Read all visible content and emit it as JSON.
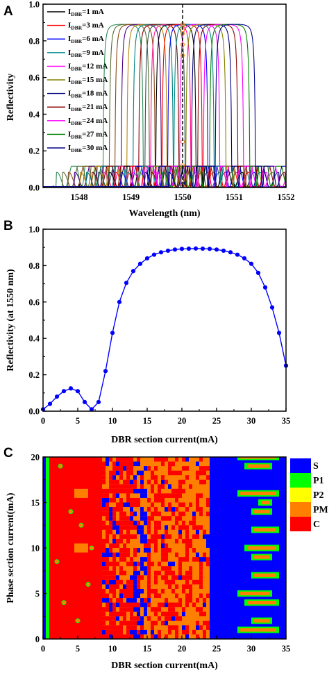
{
  "chart_data": [
    {
      "panel_label": "A",
      "type": "line",
      "xlabel": "Wavelength (nm)",
      "ylabel": "Reflectivity",
      "xlim": [
        1547.3,
        1552
      ],
      "ylim": [
        0,
        1.0
      ],
      "xticks": [
        1548,
        1549,
        1550,
        1551,
        1552
      ],
      "yticks": [
        0.0,
        0.2,
        0.4,
        0.6,
        0.8,
        1.0
      ],
      "xtick_labels": [
        "1548",
        "1549",
        "1550",
        "1551",
        "1552"
      ],
      "ytick_labels": [
        "0.0",
        "0.2",
        "0.4",
        "0.6",
        "0.8",
        "1.0"
      ],
      "legend_position": "top-left",
      "marker_line": {
        "x": 1550,
        "style": "dashed",
        "color": "#000000"
      },
      "series_model": "Bragg grating reflection spectrum (peak ~0.89, side lobes ~0.12); peak shifts ~+0.115 nm per 3 mA",
      "series": [
        {
          "name_main": "I",
          "name_sub": "DBR",
          "name_rest": "=1 mA",
          "center": 1549.87,
          "color": "#000000",
          "marker_at_1550": 0.89
        },
        {
          "name_main": "I",
          "name_sub": "DBR",
          "name_rest": "=3 mA",
          "center": 1549.99,
          "color": "#ff0000",
          "marker_at_1550": 0.89
        },
        {
          "name_main": "I",
          "name_sub": "DBR",
          "name_rest": "=6 mA",
          "center": 1550.1,
          "color": "#0000ff",
          "marker_at_1550": 0.88
        },
        {
          "name_main": "I",
          "name_sub": "DBR",
          "name_rest": "=9 mA",
          "center": 1550.22,
          "color": "#008b8b",
          "marker_at_1550": 0.86
        },
        {
          "name_main": "I",
          "name_sub": "DBR",
          "name_rest": "=12 mA",
          "center": 1550.33,
          "color": "#ff00ff",
          "marker_at_1550": 0.84
        },
        {
          "name_main": "I",
          "name_sub": "DBR",
          "name_rest": "=15 mA",
          "center": 1550.45,
          "color": "#808000",
          "marker_at_1550": 0.78
        },
        {
          "name_main": "I",
          "name_sub": "DBR",
          "name_rest": "=18 mA",
          "center": 1550.56,
          "color": "#000080",
          "marker_at_1550": 0.72
        },
        {
          "name_main": "I",
          "name_sub": "DBR",
          "name_rest": "=21 mA",
          "center": 1550.68,
          "color": "#8b0000",
          "marker_at_1550": 0.25
        },
        {
          "name_main": "I",
          "name_sub": "DBR",
          "name_rest": "=24 mA",
          "center": 1550.79,
          "color": "#ff00ff",
          "marker_at_1550": 0.12
        },
        {
          "name_main": "I",
          "name_sub": "DBR",
          "name_rest": "=27 mA",
          "center": 1550.91,
          "color": "#008000",
          "marker_at_1550": 0.04
        },
        {
          "name_main": "I",
          "name_sub": "DBR",
          "name_rest": "=30 mA",
          "center": 1551.02,
          "color": "#00008b",
          "marker_at_1550": 0.01
        }
      ],
      "extra_spectra_centers": [
        1548.85,
        1548.97,
        1549.08,
        1549.2,
        1549.31,
        1549.43,
        1549.54,
        1549.66,
        1549.77
      ]
    },
    {
      "panel_label": "B",
      "type": "line",
      "xlabel": "DBR section current(mA)",
      "ylabel": "Reflectivity (at 1550 nm)",
      "xlim": [
        0,
        35
      ],
      "ylim": [
        0,
        1.0
      ],
      "xticks": [
        0,
        5,
        10,
        15,
        20,
        25,
        30,
        35
      ],
      "yticks": [
        0.0,
        0.2,
        0.4,
        0.6,
        0.8,
        1.0
      ],
      "xtick_labels": [
        "0",
        "5",
        "10",
        "15",
        "20",
        "25",
        "30",
        "35"
      ],
      "ytick_labels": [
        "0.0",
        "0.2",
        "0.4",
        "0.6",
        "0.8",
        "1.0"
      ],
      "color": "#0000ff",
      "x": [
        0,
        1,
        2,
        3,
        4,
        5,
        6,
        7,
        8,
        9,
        10,
        11,
        12,
        13,
        14,
        15,
        16,
        17,
        18,
        19,
        20,
        21,
        22,
        23,
        24,
        25,
        26,
        27,
        28,
        29,
        30,
        31,
        32,
        33,
        34,
        35
      ],
      "y": [
        0.01,
        0.04,
        0.08,
        0.11,
        0.125,
        0.11,
        0.05,
        0.01,
        0.05,
        0.22,
        0.43,
        0.6,
        0.705,
        0.77,
        0.81,
        0.84,
        0.86,
        0.873,
        0.882,
        0.888,
        0.892,
        0.893,
        0.894,
        0.893,
        0.892,
        0.888,
        0.882,
        0.873,
        0.86,
        0.84,
        0.81,
        0.76,
        0.68,
        0.57,
        0.43,
        0.25
      ]
    },
    {
      "panel_label": "C",
      "type": "heatmap",
      "xlabel": "DBR section current(mA)",
      "ylabel": "Phase section current(mA)",
      "xlim": [
        0,
        35
      ],
      "ylim": [
        0,
        20
      ],
      "xticks": [
        0,
        5,
        10,
        15,
        20,
        25,
        30,
        35
      ],
      "yticks": [
        0,
        5,
        10,
        15,
        20
      ],
      "xtick_labels": [
        "0",
        "5",
        "10",
        "15",
        "20",
        "25",
        "30",
        "35"
      ],
      "ytick_labels": [
        "0",
        "5",
        "10",
        "15",
        "20"
      ],
      "legend_position": "right",
      "legend": [
        {
          "label": "S",
          "color": "#0000ff"
        },
        {
          "label": "P1",
          "color": "#00ff00"
        },
        {
          "label": "P2",
          "color": "#ffff00"
        },
        {
          "label": "PM",
          "color": "#ff8000"
        },
        {
          "label": "C",
          "color": "#ff0000"
        }
      ],
      "grid_step_mA": 0.5,
      "regions": [
        {
          "state": "C",
          "x_range": [
            0.5,
            8.5
          ],
          "note": "chaotic region with sparse P1/PM dots"
        },
        {
          "state": "PM",
          "x_range": [
            8.5,
            24
          ],
          "note": "mixed periodic/chaotic stripes"
        },
        {
          "state": "S",
          "x_range": [
            24,
            35
          ],
          "note": "stable region with horizontal PM/P1 streaks"
        }
      ],
      "stable_region_streaks": [
        {
          "y": 1,
          "x_range": [
            28,
            34
          ]
        },
        {
          "y": 2,
          "x_range": [
            30,
            33
          ]
        },
        {
          "y": 4,
          "x_range": [
            29,
            34
          ]
        },
        {
          "y": 5,
          "x_range": [
            28,
            33
          ]
        },
        {
          "y": 7,
          "x_range": [
            30,
            34
          ]
        },
        {
          "y": 9,
          "x_range": [
            30,
            33
          ]
        },
        {
          "y": 10,
          "x_range": [
            29,
            34
          ]
        },
        {
          "y": 12,
          "x_range": [
            30,
            34
          ]
        },
        {
          "y": 14,
          "x_range": [
            30,
            33
          ]
        },
        {
          "y": 15,
          "x_range": [
            31,
            33
          ]
        },
        {
          "y": 16,
          "x_range": [
            28,
            34
          ]
        },
        {
          "y": 19,
          "x_range": [
            29,
            33
          ]
        },
        {
          "y": 20,
          "x_range": [
            28,
            34
          ]
        }
      ]
    }
  ]
}
